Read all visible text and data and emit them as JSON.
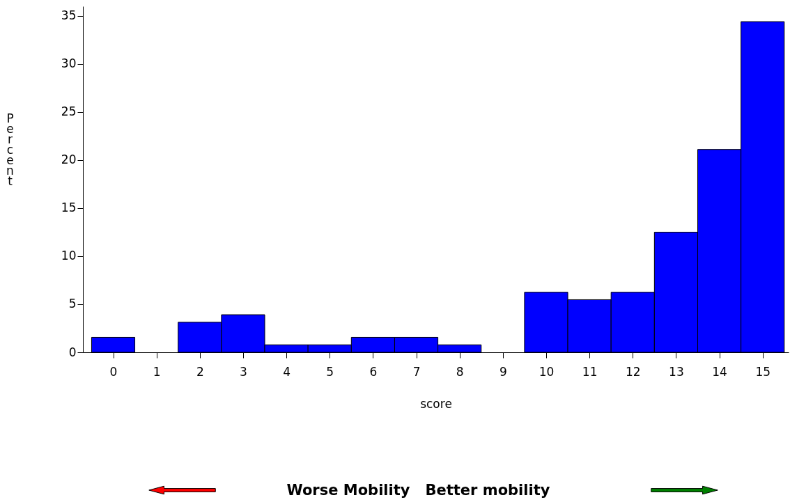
{
  "chart_data": {
    "type": "histogram",
    "xlabel": "score",
    "ylabel": "Percent",
    "bins": [
      -0.5,
      0.5,
      1.5,
      2.5,
      3.5,
      4.5,
      5.5,
      6.5,
      7.5,
      8.5,
      9.5,
      10.5,
      11.5,
      12.5,
      13.5,
      14.5,
      15.5
    ],
    "values": [
      1.56,
      0,
      3.13,
      3.91,
      0.78,
      0.78,
      1.56,
      1.56,
      0.78,
      0,
      6.25,
      5.47,
      6.25,
      12.5,
      21.1,
      34.4
    ],
    "color": "#0000ff",
    "xlim": [
      -0.7,
      15.6
    ],
    "ylim": [
      0,
      36
    ],
    "xticks": [
      0,
      1,
      2,
      3,
      4,
      5,
      6,
      7,
      8,
      9,
      10,
      11,
      12,
      13,
      14,
      15
    ],
    "yticks": [
      0,
      5,
      10,
      15,
      20,
      25,
      30,
      35
    ],
    "grid": false,
    "annotations": [
      "Worse Mobility",
      "Better mobility"
    ]
  }
}
